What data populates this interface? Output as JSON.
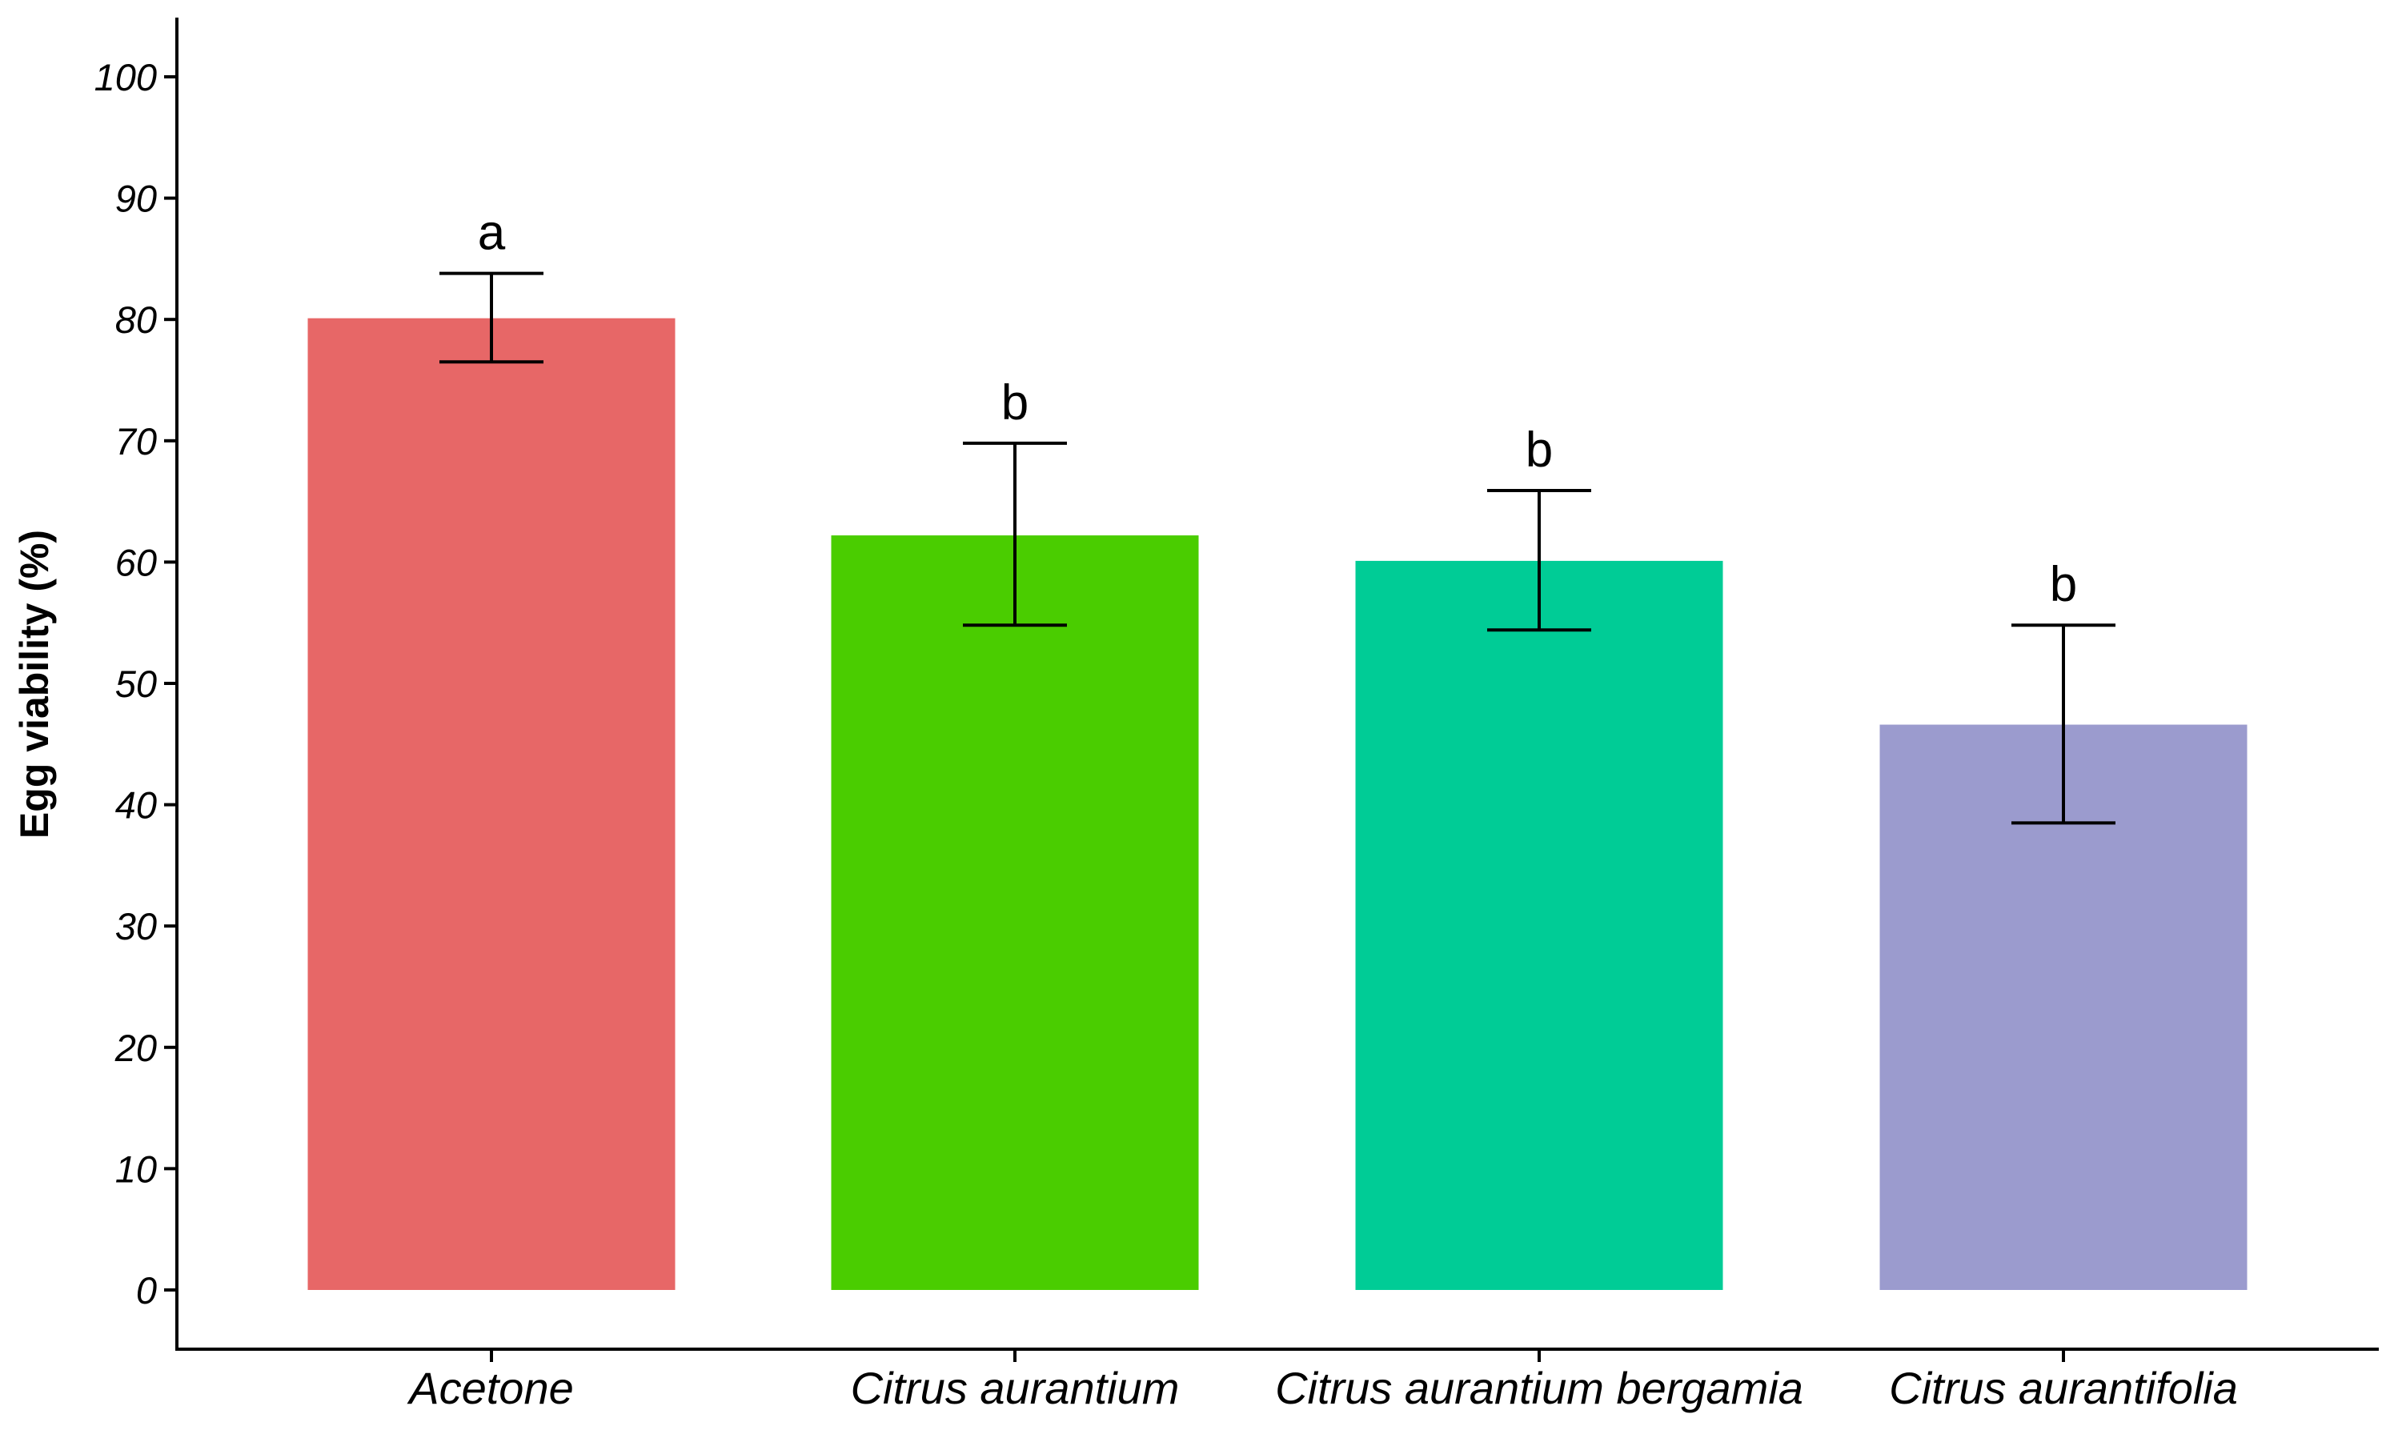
{
  "chart_data": {
    "type": "bar",
    "title": "",
    "xlabel": "",
    "ylabel": "Egg viability (%)",
    "ylim": [
      0,
      100
    ],
    "yticks": [
      0,
      10,
      20,
      30,
      40,
      50,
      60,
      70,
      80,
      90,
      100
    ],
    "grid": false,
    "categories": [
      "Acetone",
      "Citrus aurantium",
      "Citrus aurantium bergamia",
      "Citrus aurantifolia"
    ],
    "values": [
      80.1,
      62.2,
      60.1,
      46.6
    ],
    "error_low": [
      76.5,
      54.8,
      54.4,
      38.5
    ],
    "error_high": [
      83.8,
      69.8,
      65.9,
      54.8
    ],
    "significance": [
      "a",
      "b",
      "b",
      "b"
    ],
    "colors": [
      "#E76767",
      "#4ACD00",
      "#00CC96",
      "#9B9BCE"
    ]
  }
}
